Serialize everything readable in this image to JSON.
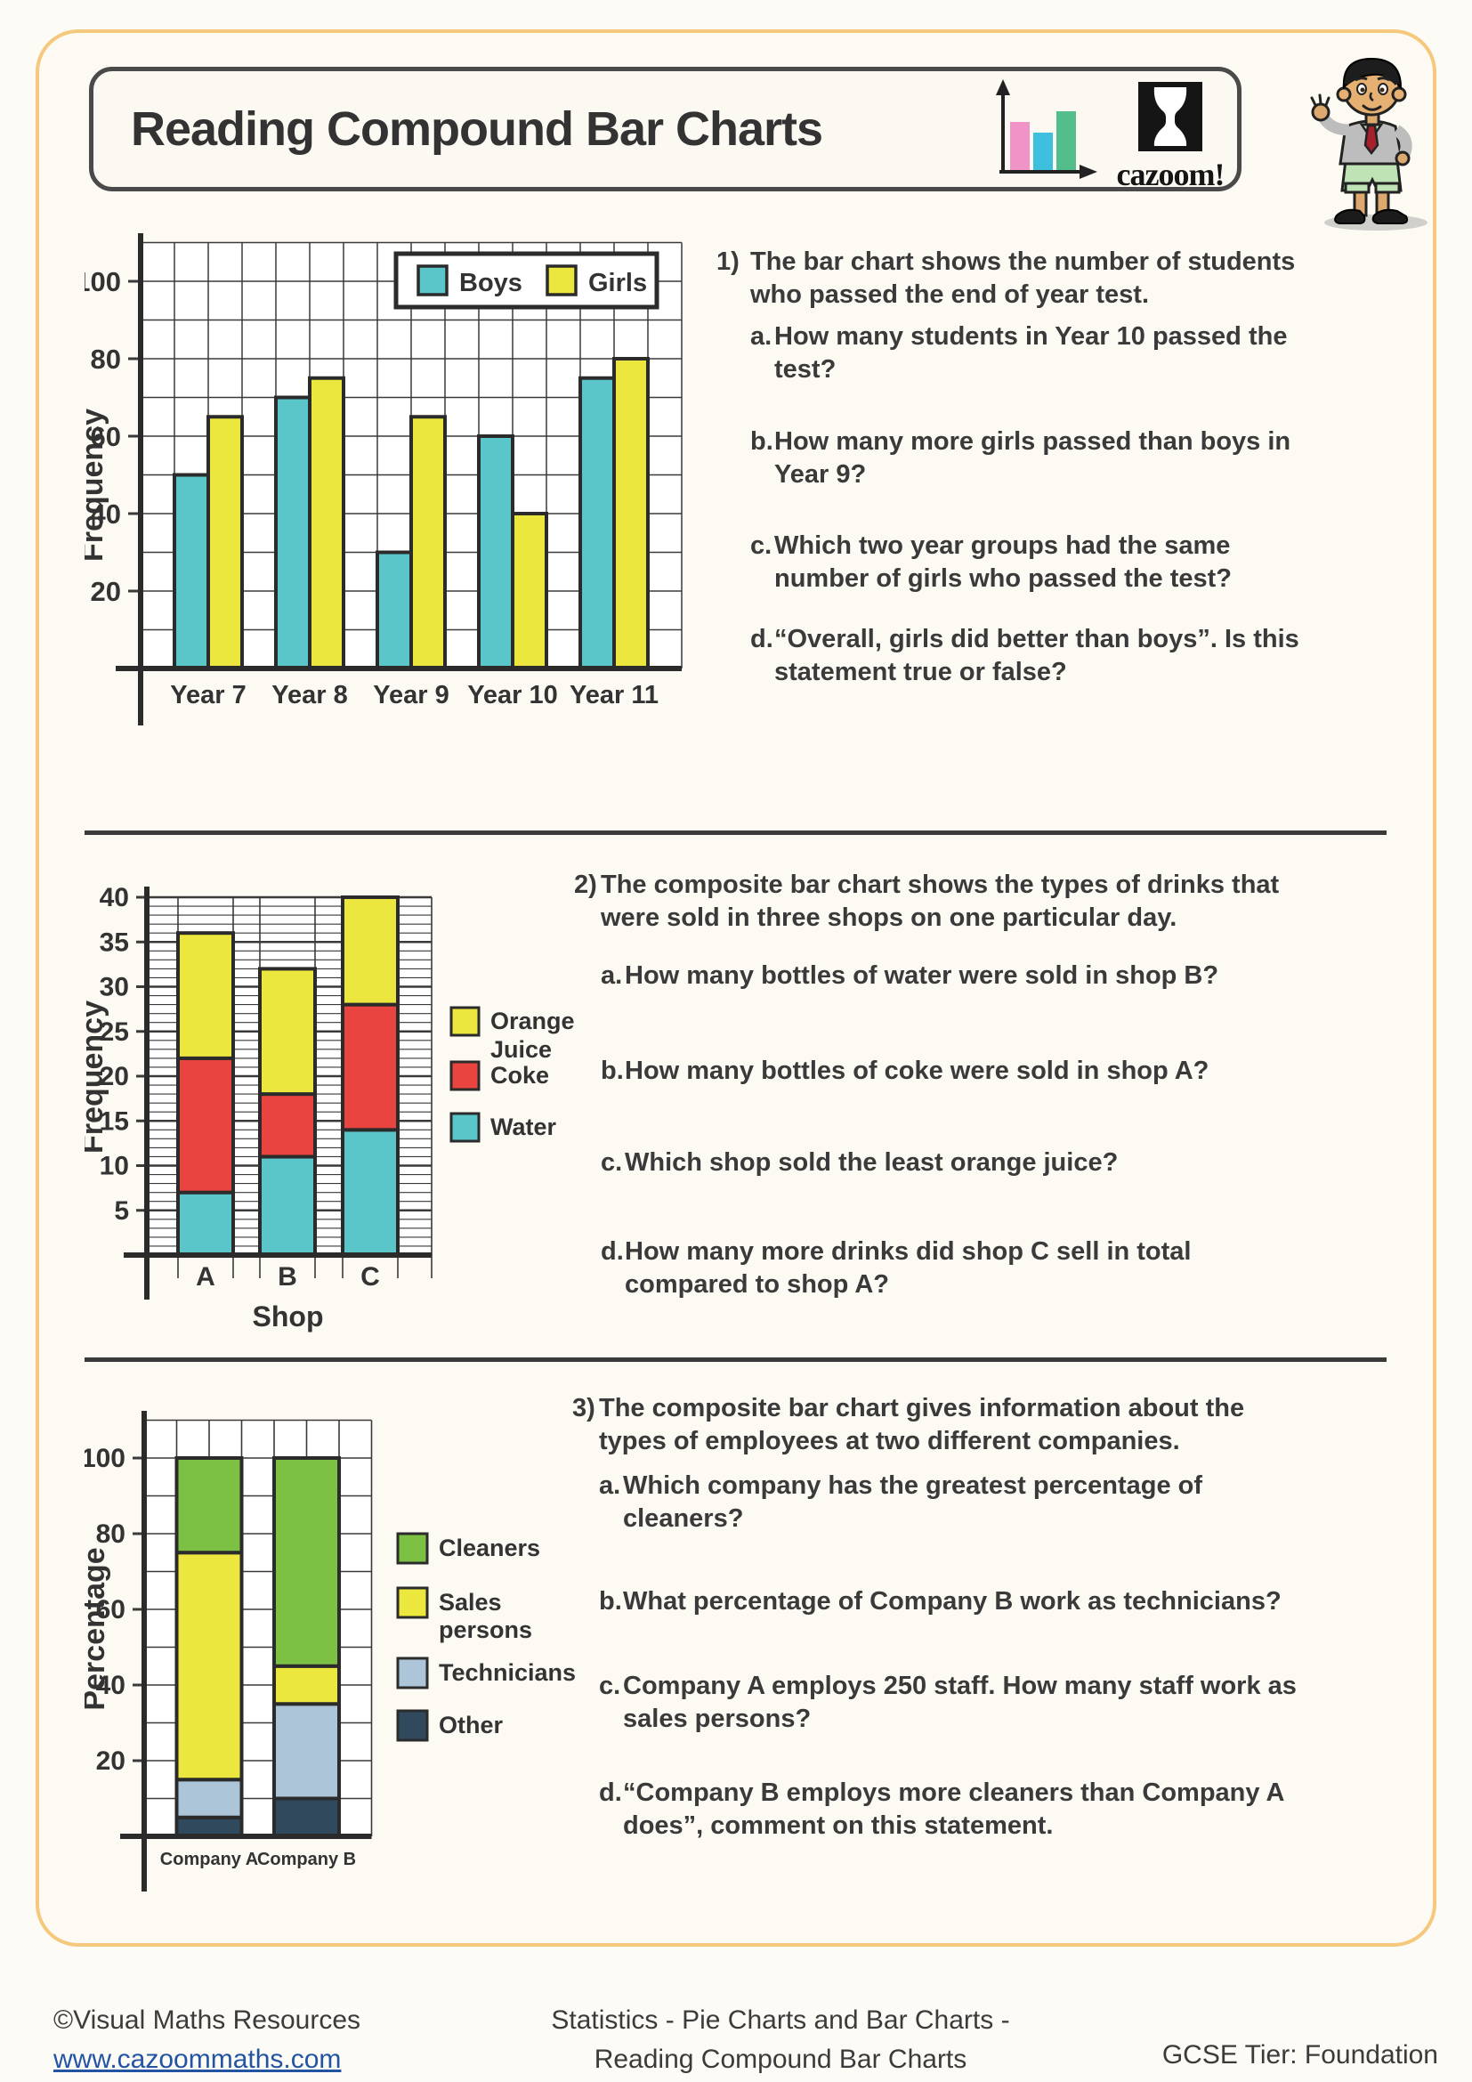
{
  "header": {
    "title": "Reading Compound Bar Charts",
    "brand": "cazoom!"
  },
  "colors": {
    "page_border": "#F5C87D",
    "boys_water_teal": "#5BC6C9",
    "girls_oj_sales_yellow": "#ECE73E",
    "coke_red": "#EA4441",
    "cleaners_green": "#7CC143",
    "technicians_lightblue": "#ADC5D8",
    "other_navy": "#31495D",
    "link_blue": "#2254A3"
  },
  "questions": [
    {
      "number": "1)",
      "intro": "The bar chart shows the number of students\nwho passed the end of year test.",
      "parts": [
        {
          "label": "a.",
          "text": "How many students in Year 10 passed the\ntest?"
        },
        {
          "label": "b.",
          "text": "How many more girls passed than boys in\nYear 9?"
        },
        {
          "label": "c.",
          "text": "Which two year groups had the same\nnumber of girls who passed the test?"
        },
        {
          "label": "d.",
          "text": "“Overall, girls did better than boys”. Is this\nstatement true or false?"
        }
      ]
    },
    {
      "number": "2)",
      "intro": "The composite bar chart shows the types of drinks that\nwere sold in three shops on one particular day.",
      "parts": [
        {
          "label": "a.",
          "text": "How many bottles of water were sold in shop B?"
        },
        {
          "label": "b.",
          "text": "How many bottles of coke were sold in shop A?"
        },
        {
          "label": "c.",
          "text": "Which shop sold the least orange juice?"
        },
        {
          "label": "d.",
          "text": "How many more drinks did shop C sell in total\ncompared to shop A?"
        }
      ]
    },
    {
      "number": "3)",
      "intro": "The composite bar chart gives information about the\ntypes of employees at two different companies.",
      "parts": [
        {
          "label": "a.",
          "text": "Which company has the greatest percentage of\ncleaners?"
        },
        {
          "label": "b.",
          "text": "What percentage of Company B work as technicians?"
        },
        {
          "label": "c.",
          "text": "Company A employs 250 staff. How many staff work as\nsales persons?"
        },
        {
          "label": "d.",
          "text": "“Company B employs more cleaners than Company A\ndoes”, comment on this statement."
        }
      ]
    }
  ],
  "chart_data": [
    {
      "type": "bar",
      "title": "",
      "categories": [
        "Year 7",
        "Year 8",
        "Year 9",
        "Year 10",
        "Year 11"
      ],
      "series": [
        {
          "name": "Boys",
          "color": "#5BC6C9",
          "values": [
            50,
            70,
            30,
            60,
            75
          ]
        },
        {
          "name": "Girls",
          "color": "#ECE73E",
          "values": [
            65,
            75,
            65,
            40,
            80
          ]
        }
      ],
      "xlabel": "",
      "ylabel": "Frequency",
      "ylim": [
        0,
        110
      ],
      "yticks": [
        20,
        40,
        60,
        80,
        100
      ],
      "grid": true,
      "legend_position": "top-right",
      "legend": [
        {
          "label": "Boys",
          "color": "#5BC6C9"
        },
        {
          "label": "Girls",
          "color": "#ECE73E"
        }
      ]
    },
    {
      "type": "bar-stacked",
      "title": "",
      "categories": [
        "A",
        "B",
        "C"
      ],
      "series": [
        {
          "name": "Water",
          "color": "#5BC6C9",
          "values": [
            7,
            11,
            14
          ]
        },
        {
          "name": "Coke",
          "color": "#EA4441",
          "values": [
            15,
            7,
            14
          ]
        },
        {
          "name": "Orange Juice",
          "color": "#ECE73E",
          "values": [
            14,
            14,
            12
          ]
        }
      ],
      "xlabel": "Shop",
      "ylabel": "Frequency",
      "ylim": [
        0,
        40
      ],
      "yticks": [
        5,
        10,
        15,
        20,
        25,
        30,
        35,
        40
      ],
      "grid": true,
      "legend_position": "right",
      "legend": [
        {
          "label": "Orange\nJuice",
          "color": "#ECE73E"
        },
        {
          "label": "Coke",
          "color": "#EA4441"
        },
        {
          "label": "Water",
          "color": "#5BC6C9"
        }
      ]
    },
    {
      "type": "bar-stacked",
      "title": "",
      "categories": [
        "Company A",
        "Company B"
      ],
      "series": [
        {
          "name": "Other",
          "color": "#31495D",
          "values": [
            5,
            10
          ]
        },
        {
          "name": "Technicians",
          "color": "#ADC5D8",
          "values": [
            10,
            25
          ]
        },
        {
          "name": "Sales persons",
          "color": "#ECE73E",
          "values": [
            60,
            10
          ]
        },
        {
          "name": "Cleaners",
          "color": "#7CC143",
          "values": [
            25,
            55
          ]
        }
      ],
      "xlabel": "",
      "ylabel": "Percentage",
      "ylim": [
        0,
        110
      ],
      "yticks": [
        20,
        40,
        60,
        80,
        100
      ],
      "grid": true,
      "legend_position": "right",
      "legend": [
        {
          "label": "Cleaners",
          "color": "#7CC143"
        },
        {
          "label": "Sales\npersons",
          "color": "#ECE73E"
        },
        {
          "label": "Technicians",
          "color": "#ADC5D8"
        },
        {
          "label": "Other",
          "color": "#31495D"
        }
      ]
    }
  ],
  "footer": {
    "left_line1": "©Visual Maths Resources",
    "left_line2": "www.cazoommaths.com",
    "center_line1": "Statistics - Pie Charts and Bar Charts -",
    "center_line2": "Reading Compound Bar Charts",
    "right": "GCSE Tier: Foundation"
  }
}
